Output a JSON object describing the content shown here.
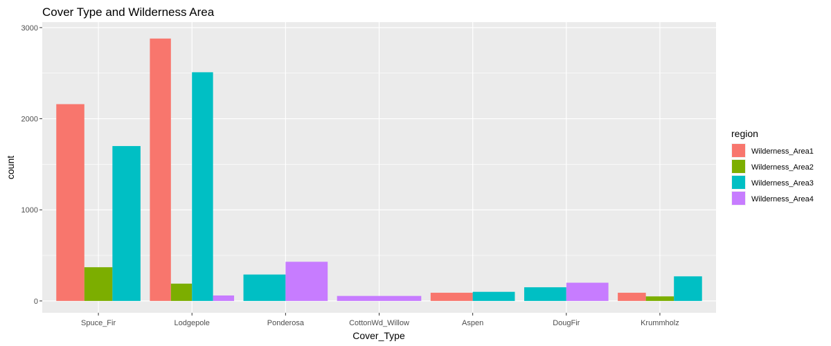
{
  "chart_data": {
    "type": "bar",
    "title": "Cover Type and Wilderness Area",
    "xlabel": "Cover_Type",
    "ylabel": "count",
    "ylim": [
      0,
      3000
    ],
    "yticks": [
      0,
      1000,
      2000,
      3000
    ],
    "grid": true,
    "legend": {
      "title": "region",
      "position": "right"
    },
    "categories": [
      "Spuce_Fir",
      "Lodgepole",
      "Ponderosa",
      "CottonWd_Willow",
      "Aspen",
      "DougFir",
      "Krummholz"
    ],
    "series": [
      {
        "name": "Wilderness_Area1",
        "color": "#F8766D",
        "values": [
          2160,
          2880,
          null,
          null,
          90,
          null,
          90
        ]
      },
      {
        "name": "Wilderness_Area2",
        "color": "#7CAE00",
        "values": [
          370,
          190,
          null,
          null,
          null,
          null,
          50
        ]
      },
      {
        "name": "Wilderness_Area3",
        "color": "#00BFC4",
        "values": [
          1700,
          2510,
          290,
          null,
          100,
          150,
          270
        ]
      },
      {
        "name": "Wilderness_Area4",
        "color": "#C77CFF",
        "values": [
          null,
          60,
          430,
          55,
          null,
          200,
          null
        ]
      }
    ]
  }
}
